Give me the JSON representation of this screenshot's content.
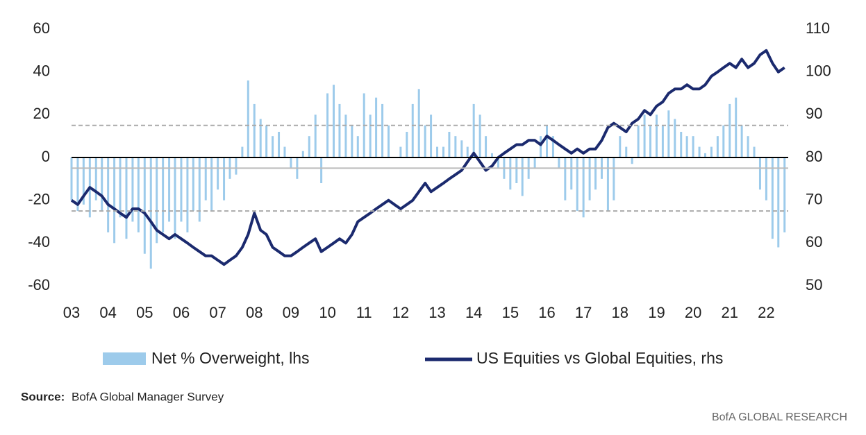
{
  "chart_data": {
    "type": "bar-line",
    "x": [
      2003.0,
      2003.17,
      2003.33,
      2003.5,
      2003.67,
      2003.83,
      2004.0,
      2004.17,
      2004.33,
      2004.5,
      2004.67,
      2004.83,
      2005.0,
      2005.17,
      2005.33,
      2005.5,
      2005.67,
      2005.83,
      2006.0,
      2006.17,
      2006.33,
      2006.5,
      2006.67,
      2006.83,
      2007.0,
      2007.17,
      2007.33,
      2007.5,
      2007.67,
      2007.83,
      2008.0,
      2008.17,
      2008.33,
      2008.5,
      2008.67,
      2008.83,
      2009.0,
      2009.17,
      2009.33,
      2009.5,
      2009.67,
      2009.83,
      2010.0,
      2010.17,
      2010.33,
      2010.5,
      2010.67,
      2010.83,
      2011.0,
      2011.17,
      2011.33,
      2011.5,
      2011.67,
      2011.83,
      2012.0,
      2012.17,
      2012.33,
      2012.5,
      2012.67,
      2012.83,
      2013.0,
      2013.17,
      2013.33,
      2013.5,
      2013.67,
      2013.83,
      2014.0,
      2014.17,
      2014.33,
      2014.5,
      2014.67,
      2014.83,
      2015.0,
      2015.17,
      2015.33,
      2015.5,
      2015.67,
      2015.83,
      2016.0,
      2016.17,
      2016.33,
      2016.5,
      2016.67,
      2016.83,
      2017.0,
      2017.17,
      2017.33,
      2017.5,
      2017.67,
      2017.83,
      2018.0,
      2018.17,
      2018.33,
      2018.5,
      2018.67,
      2018.83,
      2019.0,
      2019.17,
      2019.33,
      2019.5,
      2019.67,
      2019.83,
      2020.0,
      2020.17,
      2020.33,
      2020.5,
      2020.67,
      2020.83,
      2021.0,
      2021.17,
      2021.33,
      2021.5,
      2021.67,
      2021.83,
      2022.0,
      2022.17,
      2022.33,
      2022.5
    ],
    "series": [
      {
        "name": "Net % Overweight, lhs",
        "color": "#9dcbeb",
        "values": [
          -20,
          -25,
          -22,
          -28,
          -20,
          -25,
          -35,
          -40,
          -28,
          -38,
          -30,
          -35,
          -45,
          -52,
          -40,
          -35,
          -30,
          -38,
          -30,
          -35,
          -25,
          -30,
          -20,
          -25,
          -15,
          -20,
          -10,
          -8,
          5,
          36,
          25,
          18,
          15,
          10,
          12,
          5,
          -5,
          -10,
          3,
          10,
          20,
          -12,
          30,
          34,
          25,
          20,
          15,
          10,
          30,
          20,
          28,
          25,
          15,
          0,
          5,
          12,
          25,
          32,
          15,
          20,
          5,
          5,
          12,
          10,
          8,
          5,
          25,
          20,
          10,
          2,
          -5,
          -10,
          -15,
          -12,
          -18,
          -10,
          -5,
          10,
          15,
          10,
          -5,
          -20,
          -15,
          -25,
          -28,
          -20,
          -15,
          -10,
          -25,
          -20,
          10,
          5,
          -3,
          15,
          20,
          15,
          20,
          15,
          22,
          18,
          12,
          10,
          10,
          5,
          2,
          5,
          10,
          15,
          25,
          28,
          15,
          10,
          5,
          -15,
          -20,
          -38,
          -42,
          -35
        ]
      },
      {
        "name": "US Equities vs Global Equities, rhs",
        "color": "#1b2a6e",
        "axis": "y2",
        "values": [
          70,
          69,
          71,
          73,
          72,
          71,
          69,
          68,
          67,
          66,
          68,
          68,
          67,
          65,
          63,
          62,
          61,
          62,
          61,
          60,
          59,
          58,
          57,
          57,
          56,
          55,
          56,
          57,
          59,
          62,
          67,
          63,
          62,
          59,
          58,
          57,
          57,
          58,
          59,
          60,
          61,
          58,
          59,
          60,
          61,
          60,
          62,
          65,
          66,
          67,
          68,
          69,
          70,
          69,
          68,
          69,
          70,
          72,
          74,
          72,
          73,
          74,
          75,
          76,
          77,
          79,
          81,
          79,
          77,
          78,
          80,
          81,
          82,
          83,
          83,
          84,
          84,
          83,
          85,
          84,
          83,
          82,
          81,
          82,
          81,
          82,
          82,
          84,
          87,
          88,
          87,
          86,
          88,
          89,
          91,
          90,
          92,
          93,
          95,
          96,
          96,
          97,
          96,
          96,
          97,
          99,
          100,
          101,
          102,
          101,
          103,
          101,
          102,
          104,
          105,
          102,
          100,
          101
        ]
      }
    ],
    "xlim": [
      2003,
      2022.6
    ],
    "xticks": [
      {
        "value": 2003,
        "label": "03"
      },
      {
        "value": 2004,
        "label": "04"
      },
      {
        "value": 2005,
        "label": "05"
      },
      {
        "value": 2006,
        "label": "06"
      },
      {
        "value": 2007,
        "label": "07"
      },
      {
        "value": 2008,
        "label": "08"
      },
      {
        "value": 2009,
        "label": "09"
      },
      {
        "value": 2010,
        "label": "10"
      },
      {
        "value": 2011,
        "label": "11"
      },
      {
        "value": 2012,
        "label": "12"
      },
      {
        "value": 2013,
        "label": "13"
      },
      {
        "value": 2014,
        "label": "14"
      },
      {
        "value": 2015,
        "label": "15"
      },
      {
        "value": 2016,
        "label": "16"
      },
      {
        "value": 2017,
        "label": "17"
      },
      {
        "value": 2018,
        "label": "18"
      },
      {
        "value": 2019,
        "label": "19"
      },
      {
        "value": 2020,
        "label": "20"
      },
      {
        "value": 2021,
        "label": "21"
      },
      {
        "value": 2022,
        "label": "22"
      }
    ],
    "ylim": [
      -60,
      60
    ],
    "yticks": [
      -60,
      -40,
      -20,
      0,
      20,
      40,
      60
    ],
    "y2lim": [
      50,
      110
    ],
    "y2ticks": [
      50,
      60,
      70,
      80,
      90,
      100,
      110
    ],
    "hlines": [
      {
        "value": 15,
        "style": "dashed"
      },
      {
        "value": -5,
        "style": "solid"
      },
      {
        "value": -25,
        "style": "dashed"
      }
    ],
    "source_label": "Source:",
    "source": "BofA Global Manager Survey",
    "footer": "BofA GLOBAL RESEARCH"
  }
}
